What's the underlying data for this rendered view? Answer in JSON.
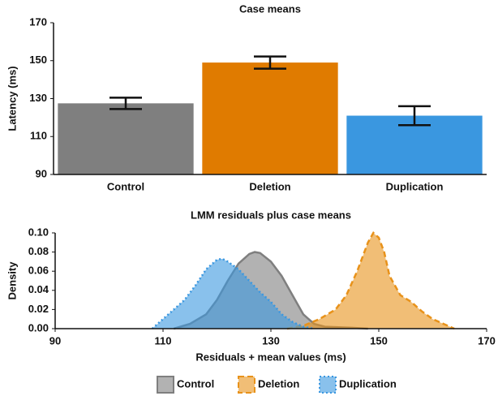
{
  "chart_data": [
    {
      "type": "bar",
      "title": "Case means",
      "y_label": "Latency (ms)",
      "categories": [
        "Control",
        "Deletion",
        "Duplication"
      ],
      "values": [
        127.5,
        149,
        121
      ],
      "errors": [
        3,
        3.2,
        5
      ],
      "colors": [
        "#7f7f7f",
        "#e07b00",
        "#3a97e0"
      ],
      "ylim": [
        90,
        170
      ],
      "yticks": [
        90,
        110,
        130,
        150,
        170
      ]
    },
    {
      "type": "density",
      "title": "LMM residuals plus case means",
      "x_label": "Residuals + mean values (ms)",
      "y_label": "Density",
      "xlim": [
        90,
        170
      ],
      "xticks": [
        90,
        110,
        130,
        150,
        170
      ],
      "ylim": [
        0,
        0.1
      ],
      "yticks": [
        {
          "value": 0,
          "label": "0.00"
        },
        {
          "value": 0.02,
          "label": "0.02"
        },
        {
          "value": 0.04,
          "label": "0.04"
        },
        {
          "value": 0.06,
          "label": "0.06"
        },
        {
          "value": 0.08,
          "label": "0.08"
        },
        {
          "value": 0.1,
          "label": "0.10"
        }
      ],
      "legend": "bottom",
      "series": [
        {
          "name": "Control",
          "color": "#7f7f7f",
          "dash": "solid",
          "x": [
            112,
            115,
            118,
            120,
            122,
            124,
            126,
            127,
            128,
            130,
            132,
            134,
            136,
            138,
            140,
            145,
            148
          ],
          "values": [
            0,
            0.005,
            0.015,
            0.03,
            0.05,
            0.068,
            0.078,
            0.08,
            0.079,
            0.07,
            0.055,
            0.035,
            0.015,
            0.005,
            0.002,
            0.001,
            0
          ]
        },
        {
          "name": "Deletion",
          "color": "#e8921a",
          "dash": "dashed",
          "x": [
            133,
            136,
            139,
            142,
            144,
            146,
            148,
            149,
            150,
            151,
            152,
            154,
            156,
            158,
            160,
            162,
            164
          ],
          "values": [
            0,
            0.003,
            0.01,
            0.02,
            0.035,
            0.06,
            0.09,
            0.1,
            0.095,
            0.08,
            0.055,
            0.035,
            0.028,
            0.018,
            0.01,
            0.005,
            0
          ]
        },
        {
          "name": "Duplication",
          "color": "#3a97e0",
          "dash": "dotted",
          "x": [
            108,
            110,
            112,
            114,
            116,
            118,
            120,
            121,
            122,
            124,
            126,
            128,
            130,
            132,
            134,
            136,
            138
          ],
          "values": [
            0,
            0.01,
            0.02,
            0.03,
            0.045,
            0.062,
            0.072,
            0.073,
            0.07,
            0.062,
            0.05,
            0.038,
            0.028,
            0.015,
            0.007,
            0.002,
            0
          ]
        }
      ]
    }
  ]
}
